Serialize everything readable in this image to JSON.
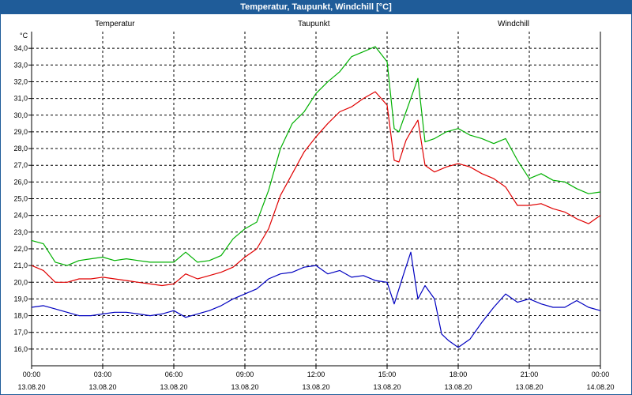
{
  "window": {
    "title": "Temperatur, Taupunkt, Windchill [°C]"
  },
  "chart_data": {
    "type": "line",
    "title": "Temperatur, Taupunkt, Windchill [°C]",
    "ylabel": "°C",
    "xlabel": "",
    "ylim": [
      15.0,
      35.0
    ],
    "xlim": [
      0,
      24
    ],
    "grid": true,
    "y_ticks": [
      "16,0",
      "17,0",
      "18,0",
      "19,0",
      "20,0",
      "21,0",
      "22,0",
      "23,0",
      "24,0",
      "25,0",
      "26,0",
      "27,0",
      "28,0",
      "29,0",
      "30,0",
      "31,0",
      "32,0",
      "33,0",
      "34,0"
    ],
    "x_ticks": [
      {
        "time": "00:00",
        "date": "13.08.20"
      },
      {
        "time": "03:00",
        "date": "13.08.20"
      },
      {
        "time": "06:00",
        "date": "13.08.20"
      },
      {
        "time": "09:00",
        "date": "13.08.20"
      },
      {
        "time": "12:00",
        "date": "13.08.20"
      },
      {
        "time": "15:00",
        "date": "13.08.20"
      },
      {
        "time": "18:00",
        "date": "13.08.20"
      },
      {
        "time": "21:00",
        "date": "13.08.20"
      },
      {
        "time": "00:00",
        "date": "14.08.20"
      }
    ],
    "series": [
      {
        "name": "Temperatur",
        "color": "#e00000",
        "x": [
          0,
          0.5,
          1,
          1.5,
          2,
          2.5,
          3,
          3.5,
          4,
          4.5,
          5,
          5.5,
          6,
          6.5,
          7,
          7.5,
          8,
          8.5,
          9,
          9.5,
          10,
          10.5,
          11,
          11.5,
          12,
          12.5,
          13,
          13.5,
          14,
          14.5,
          15,
          15.3,
          15.5,
          15.8,
          16,
          16.3,
          16.6,
          17,
          17.5,
          18,
          18.5,
          19,
          19.5,
          20,
          20.5,
          21,
          21.5,
          22,
          22.5,
          23,
          23.5,
          24
        ],
        "values": [
          21.0,
          20.7,
          20.0,
          20.0,
          20.2,
          20.2,
          20.3,
          20.2,
          20.1,
          20.0,
          19.9,
          19.8,
          19.9,
          20.5,
          20.2,
          20.4,
          20.6,
          20.9,
          21.5,
          22.0,
          23.2,
          25.2,
          26.5,
          27.8,
          28.7,
          29.5,
          30.2,
          30.5,
          31.0,
          31.4,
          30.6,
          27.3,
          27.2,
          28.5,
          29.0,
          29.7,
          27.0,
          26.6,
          26.9,
          27.1,
          26.9,
          26.5,
          26.2,
          25.7,
          24.6,
          24.6,
          24.7,
          24.4,
          24.2,
          23.8,
          23.5,
          24.0
        ]
      },
      {
        "name": "Taupunkt",
        "color": "#0000c0",
        "x": [
          0,
          0.5,
          1,
          1.5,
          2,
          2.5,
          3,
          3.5,
          4,
          4.5,
          5,
          5.5,
          6,
          6.5,
          7,
          7.5,
          8,
          8.5,
          9,
          9.5,
          10,
          10.5,
          11,
          11.5,
          12,
          12.5,
          13,
          13.5,
          14,
          14.5,
          15,
          15.3,
          15.7,
          16,
          16.3,
          16.6,
          17,
          17.3,
          17.6,
          18,
          18.5,
          19,
          19.5,
          20,
          20.5,
          21,
          21.5,
          22,
          22.5,
          23,
          23.5,
          24
        ],
        "values": [
          18.5,
          18.6,
          18.4,
          18.2,
          18.0,
          18.0,
          18.1,
          18.2,
          18.2,
          18.1,
          18.0,
          18.1,
          18.3,
          17.9,
          18.1,
          18.3,
          18.6,
          19.0,
          19.3,
          19.6,
          20.2,
          20.5,
          20.6,
          20.9,
          21.0,
          20.5,
          20.7,
          20.3,
          20.4,
          20.1,
          20.0,
          18.7,
          20.5,
          21.8,
          19.0,
          19.8,
          19.0,
          16.9,
          16.5,
          16.1,
          16.6,
          17.6,
          18.5,
          19.3,
          18.8,
          19.0,
          18.7,
          18.5,
          18.5,
          18.9,
          18.5,
          18.3
        ]
      },
      {
        "name": "Windchill",
        "color": "#00b000",
        "x": [
          0,
          0.5,
          1,
          1.5,
          2,
          2.5,
          3,
          3.5,
          4,
          4.5,
          5,
          5.5,
          6,
          6.5,
          7,
          7.5,
          8,
          8.5,
          9,
          9.5,
          10,
          10.5,
          11,
          11.5,
          12,
          12.5,
          13,
          13.5,
          14,
          14.5,
          15,
          15.3,
          15.5,
          15.8,
          16,
          16.3,
          16.6,
          17,
          17.5,
          18,
          18.5,
          19,
          19.5,
          20,
          20.5,
          21,
          21.5,
          22,
          22.5,
          23,
          23.5,
          24
        ],
        "values": [
          22.5,
          22.3,
          21.2,
          21.0,
          21.3,
          21.4,
          21.5,
          21.3,
          21.4,
          21.3,
          21.2,
          21.2,
          21.2,
          21.8,
          21.2,
          21.3,
          21.6,
          22.6,
          23.2,
          23.6,
          25.5,
          28.0,
          29.5,
          30.2,
          31.3,
          32.0,
          32.6,
          33.5,
          33.8,
          34.1,
          33.2,
          29.2,
          29.0,
          30.2,
          31.0,
          32.2,
          28.4,
          28.6,
          29.0,
          29.2,
          28.8,
          28.6,
          28.3,
          28.6,
          27.3,
          26.2,
          26.5,
          26.1,
          26.0,
          25.6,
          25.3,
          25.4
        ]
      }
    ]
  }
}
